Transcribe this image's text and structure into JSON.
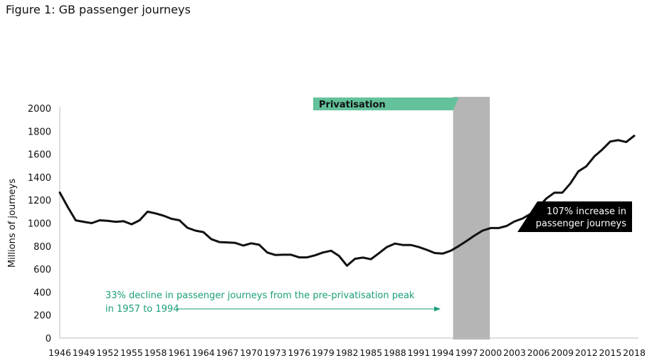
{
  "figure_title": "Figure 1: GB passenger journeys",
  "chart_data": {
    "type": "line",
    "ylabel": "Millions of journeys",
    "xlabel": "",
    "ylim": [
      0,
      2000
    ],
    "yticks": [
      0,
      200,
      400,
      600,
      800,
      1000,
      1200,
      1400,
      1600,
      1800,
      2000
    ],
    "xticks": [
      "1946",
      "1949",
      "1952",
      "1955",
      "1958",
      "1961",
      "1964",
      "1967",
      "1970",
      "1973",
      "1976",
      "1979",
      "1982",
      "1985",
      "1988",
      "1991",
      "1994",
      "1997",
      "2000",
      "2003",
      "2006",
      "2009",
      "2012",
      "2015",
      "2018"
    ],
    "xlim": [
      1946,
      2018
    ],
    "grid": false,
    "series": [
      {
        "color": "#111111",
        "x": [
          1946,
          1947,
          1948,
          1949,
          1950,
          1951,
          1952,
          1953,
          1954,
          1955,
          1956,
          1957,
          1958,
          1959,
          1960,
          1961,
          1962,
          1963,
          1964,
          1965,
          1966,
          1967,
          1968,
          1969,
          1970,
          1971,
          1972,
          1973,
          1974,
          1975,
          1976,
          1977,
          1978,
          1979,
          1980,
          1981,
          1982,
          1983,
          1984,
          1985,
          1986,
          1987,
          1988,
          1989,
          1990,
          1991,
          1992,
          1993,
          1994,
          1995,
          1996,
          1997,
          1998,
          1999,
          2000,
          2001,
          2002,
          2003,
          2004,
          2005,
          2006,
          2007,
          2008,
          2009,
          2010,
          2011,
          2012,
          2013,
          2014,
          2015,
          2016,
          2017,
          2018
        ],
        "y": [
          1266,
          1140,
          1024,
          1012,
          1000,
          1025,
          1020,
          1012,
          1017,
          990,
          1025,
          1100,
          1085,
          1065,
          1038,
          1025,
          960,
          935,
          922,
          860,
          835,
          832,
          828,
          805,
          825,
          812,
          745,
          723,
          725,
          725,
          702,
          702,
          720,
          745,
          760,
          715,
          630,
          690,
          700,
          686,
          738,
          792,
          822,
          810,
          810,
          792,
          768,
          740,
          735,
          760,
          800,
          845,
          892,
          935,
          957,
          957,
          975,
          1015,
          1040,
          1080,
          1140,
          1215,
          1265,
          1265,
          1345,
          1450,
          1495,
          1580,
          1640,
          1710,
          1722,
          1705,
          1760
        ]
      }
    ],
    "shaded_band": {
      "from": 1995.3,
      "to": 1999.9,
      "color": "#b5b5b5"
    },
    "annotations": {
      "privatisation_label": "Privatisation",
      "privatisation_color": "#63c29b",
      "increase_line1": "107% increase in",
      "increase_line2": "passenger journeys",
      "decline_line1": "33% decline in passenger journeys from the pre-privatisation peak",
      "decline_line2": "in 1957 to 1994",
      "decline_color": "#1a9e7a"
    }
  }
}
